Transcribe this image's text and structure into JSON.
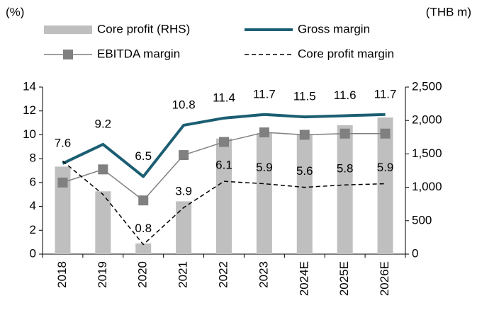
{
  "chart_data": {
    "type": "bar-line",
    "y_label": "(%)",
    "y2_label": "(THB m)",
    "categories": [
      "2018",
      "2019",
      "2020",
      "2021",
      "2022",
      "2023",
      "2024E",
      "2025E",
      "2026E"
    ],
    "ylim": [
      0,
      14
    ],
    "yticks": [
      0,
      2,
      4,
      6,
      8,
      10,
      12,
      14
    ],
    "y2lim": [
      0,
      2500
    ],
    "y2ticks": [
      0,
      500,
      {
        "value": 1000,
        "label": "1,000"
      },
      {
        "value": 1500,
        "label": "1,500"
      },
      {
        "value": 2000,
        "label": "2,000"
      },
      {
        "value": 2500,
        "label": "2,500"
      }
    ],
    "series": [
      {
        "name": "Core profit (RHS)",
        "kind": "bar",
        "axis": "y2",
        "color": "#bfbfbf",
        "values": [
          1310,
          940,
          160,
          790,
          1730,
          1810,
          1790,
          1930,
          2045
        ]
      },
      {
        "name": "Gross margin",
        "kind": "line",
        "color": "#1b5e72",
        "width": 4,
        "values": [
          7.6,
          9.2,
          6.5,
          10.8,
          11.4,
          11.7,
          11.5,
          11.6,
          11.7
        ],
        "value_labels": [
          "7.6",
          "9.2",
          "6.5",
          "10.8",
          "11.4",
          "11.7",
          "11.5",
          "11.6",
          "11.7"
        ]
      },
      {
        "name": "EBITDA margin",
        "kind": "line",
        "color": "#808080",
        "width": 1.5,
        "marker": "square",
        "values": [
          6.0,
          7.1,
          4.5,
          8.3,
          9.4,
          10.2,
          10.0,
          10.1,
          10.1
        ]
      },
      {
        "name": "Core profit margin",
        "kind": "line",
        "color": "#000000",
        "width": 1.5,
        "dash": true,
        "values": [
          7.8,
          5.0,
          0.8,
          3.9,
          6.1,
          5.9,
          5.6,
          5.8,
          5.9
        ],
        "value_labels": [
          null,
          null,
          "0.8",
          "3.9",
          "6.1",
          "5.9",
          "5.6",
          "5.8",
          "5.9"
        ]
      }
    ]
  }
}
